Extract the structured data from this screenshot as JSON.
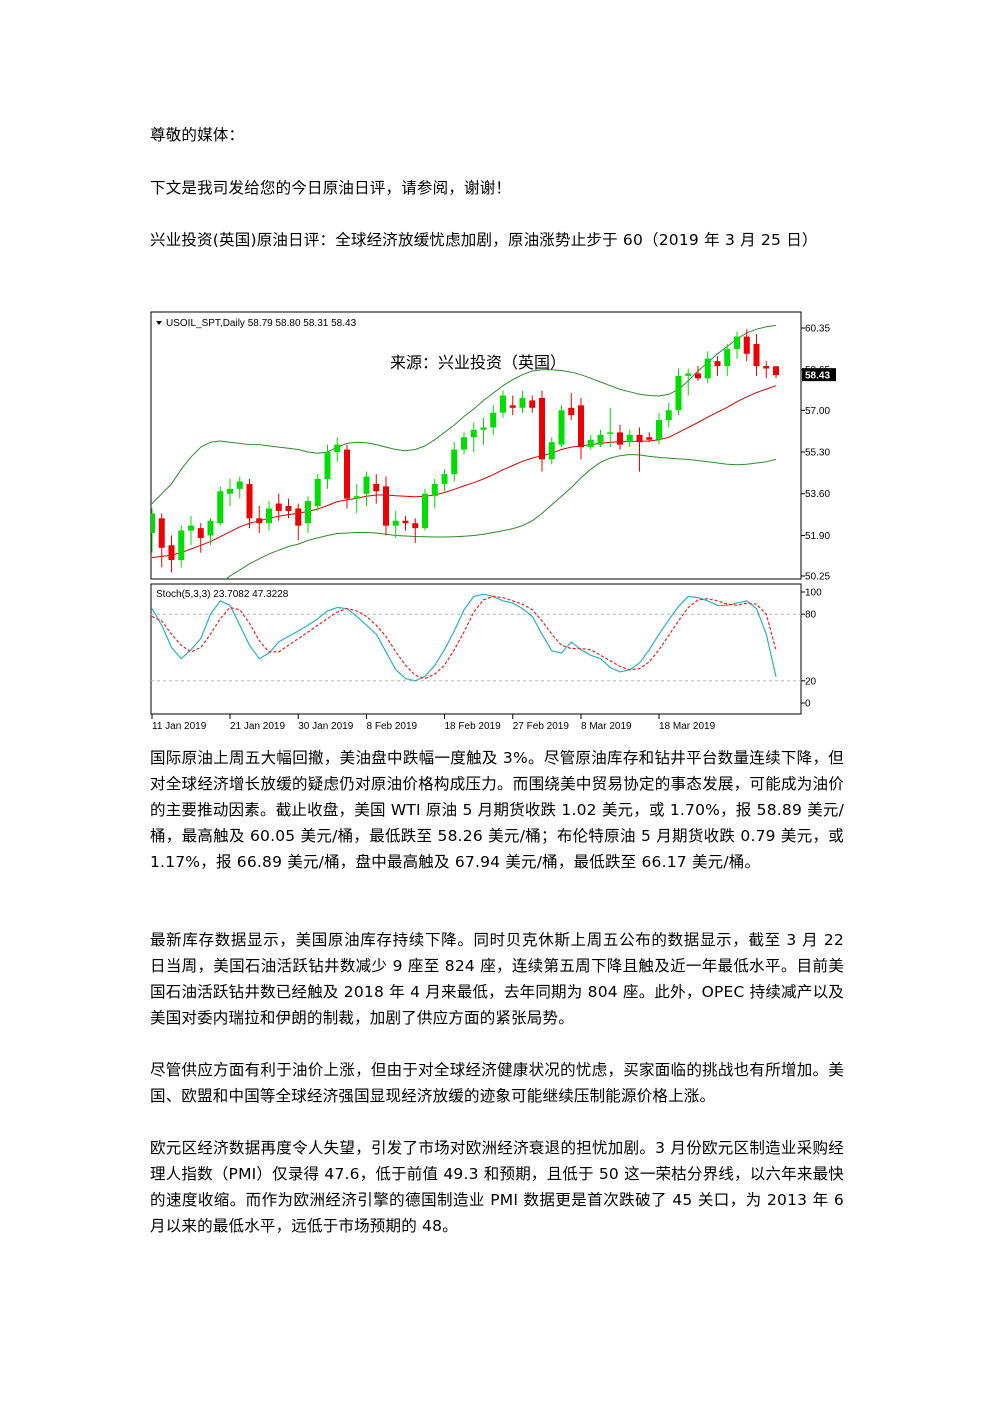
{
  "doc": {
    "greeting": "尊敬的媒体：",
    "intro": "下文是我司发给您的今日原油日评，请参阅，谢谢！",
    "headline": "兴业投资(英国)原油日评：全球经济放缓忧虑加剧，原油涨势止步于 60（2019 年 3 月 25 日）",
    "paragraphs": [
      "国际原油上周五大幅回撤，美油盘中跌幅一度触及 3%。尽管原油库存和钻井平台数量连续下降，但对全球经济增长放缓的疑虑仍对原油价格构成压力。而围绕美中贸易协定的事态发展，可能成为油价的主要推动因素。截止收盘，美国 WTI 原油 5 月期货收跌 1.02 美元，或 1.70%，报 58.89 美元/桶，最高触及 60.05 美元/桶，最低跌至 58.26 美元/桶；布伦特原油 5 月期货收跌 0.79 美元，或 1.17%，报 66.89 美元/桶，盘中最高触及 67.94 美元/桶，最低跌至 66.17 美元/桶。",
      "最新库存数据显示，美国原油库存持续下降。同时贝克休斯上周五公布的数据显示，截至 3 月 22 日当周，美国石油活跃钻井数减少 9 座至 824 座，连续第五周下降且触及近一年最低水平。目前美国石油活跃钻井数已经触及 2018 年 4 月来最低，去年同期为 804 座。此外，OPEC 持续减产以及美国对委内瑞拉和伊朗的制裁，加剧了供应方面的紧张局势。",
      "尽管供应方面有利于油价上涨，但由于对全球经济健康状况的忧虑，买家面临的挑战也有所增加。美国、欧盟和中国等全球经济强国显现经济放缓的迹象可能继续压制能源价格上涨。",
      "欧元区经济数据再度令人失望，引发了市场对欧洲经济衰退的担忧加剧。3 月份欧元区制造业采购经理人指数（PMI）仅录得 47.6，低于前值 49.3 和预期，且低于 50 这一荣枯分界线，以六年来最快的速度收缩。而作为欧洲经济引擎的德国制造业 PMI 数据更是首次跌破了 45 关口，为 2013 年 6 月以来的最低水平，远低于市场预期的 48。"
    ]
  },
  "chart_data": [
    {
      "type": "candlestick",
      "title": "USOIL_SPT,Daily 58.79 58.80 58.31 58.43",
      "source": "来源：兴业投资（英国）",
      "ylim": [
        50.25,
        60.35
      ],
      "y_ticks": [
        "60.35",
        "58.65",
        "57.00",
        "55.30",
        "53.60",
        "51.90",
        "50.25"
      ],
      "current_price_label": "58.43",
      "x_ticks": [
        "11 Jan 2019",
        "21 Jan 2019",
        "30 Jan 2019",
        "8 Feb 2019",
        "18 Feb 2019",
        "27 Feb 2019",
        "8 Mar 2019",
        "18 Mar 2019"
      ],
      "colors": {
        "up": "#00dd00",
        "down": "#ee0000",
        "ma": "#dd0000",
        "bands": "#2e8b2e"
      },
      "ohlc": [
        [
          52.0,
          53.0,
          51.2,
          52.8
        ],
        [
          52.6,
          52.8,
          50.6,
          51.4
        ],
        [
          51.5,
          51.9,
          50.4,
          50.9
        ],
        [
          50.9,
          52.3,
          50.6,
          52.1
        ],
        [
          52.1,
          52.7,
          51.5,
          52.3
        ],
        [
          52.2,
          52.4,
          51.2,
          51.8
        ],
        [
          51.9,
          52.6,
          51.5,
          52.5
        ],
        [
          52.4,
          53.9,
          52.3,
          53.7
        ],
        [
          53.6,
          54.2,
          53.1,
          53.8
        ],
        [
          53.8,
          54.3,
          53.4,
          54.1
        ],
        [
          54.0,
          54.2,
          52.2,
          52.6
        ],
        [
          52.6,
          53.1,
          52.0,
          52.4
        ],
        [
          52.4,
          53.3,
          52.1,
          53.0
        ],
        [
          53.2,
          53.6,
          52.5,
          52.9
        ],
        [
          53.1,
          53.4,
          52.6,
          52.9
        ],
        [
          53.0,
          53.2,
          51.7,
          52.3
        ],
        [
          52.4,
          53.5,
          52.0,
          53.3
        ],
        [
          53.1,
          54.4,
          52.9,
          54.2
        ],
        [
          54.2,
          55.6,
          53.8,
          55.3
        ],
        [
          55.3,
          55.9,
          54.9,
          55.6
        ],
        [
          55.4,
          55.6,
          53.0,
          53.4
        ],
        [
          53.4,
          54.0,
          52.8,
          53.5
        ],
        [
          53.6,
          54.5,
          53.1,
          54.3
        ],
        [
          54.0,
          54.4,
          53.2,
          53.7
        ],
        [
          53.9,
          54.3,
          51.9,
          52.3
        ],
        [
          52.3,
          52.9,
          51.8,
          52.5
        ],
        [
          52.5,
          52.7,
          52.1,
          52.4
        ],
        [
          52.4,
          52.6,
          51.6,
          52.2
        ],
        [
          52.2,
          53.8,
          52.1,
          53.6
        ],
        [
          53.5,
          54.2,
          53.0,
          54.0
        ],
        [
          54.0,
          54.6,
          53.7,
          54.4
        ],
        [
          54.4,
          55.7,
          54.1,
          55.4
        ],
        [
          55.4,
          56.1,
          55.2,
          55.9
        ],
        [
          55.9,
          56.5,
          55.3,
          56.2
        ],
        [
          56.2,
          56.7,
          55.6,
          56.3
        ],
        [
          56.3,
          57.2,
          56.0,
          56.9
        ],
        [
          56.9,
          57.8,
          56.7,
          57.6
        ],
        [
          57.2,
          57.6,
          56.8,
          57.1
        ],
        [
          57.1,
          57.8,
          56.9,
          57.5
        ],
        [
          57.4,
          57.6,
          56.9,
          57.1
        ],
        [
          57.5,
          57.8,
          54.5,
          55.0
        ],
        [
          55.0,
          55.9,
          54.8,
          55.7
        ],
        [
          55.6,
          57.2,
          55.5,
          57.0
        ],
        [
          57.1,
          57.7,
          56.6,
          56.8
        ],
        [
          57.2,
          57.5,
          55.0,
          55.5
        ],
        [
          55.5,
          56.0,
          55.4,
          55.8
        ],
        [
          55.6,
          56.2,
          55.5,
          56.0
        ],
        [
          56.1,
          57.1,
          55.5,
          56.1
        ],
        [
          56.1,
          56.4,
          55.4,
          55.6
        ],
        [
          55.7,
          56.2,
          55.5,
          56.0
        ],
        [
          56.0,
          56.3,
          54.5,
          55.7
        ],
        [
          55.9,
          56.1,
          55.7,
          55.8
        ],
        [
          55.8,
          56.9,
          55.6,
          56.6
        ],
        [
          56.6,
          57.3,
          56.3,
          57.0
        ],
        [
          57.0,
          58.7,
          56.8,
          58.4
        ],
        [
          58.4,
          58.7,
          57.6,
          58.5
        ],
        [
          58.5,
          58.8,
          58.2,
          58.3
        ],
        [
          58.3,
          59.4,
          58.1,
          59.1
        ],
        [
          59.0,
          59.2,
          58.4,
          58.8
        ],
        [
          58.8,
          59.7,
          58.4,
          59.5
        ],
        [
          59.5,
          60.2,
          59.1,
          60.0
        ],
        [
          60.0,
          60.3,
          59.0,
          59.3
        ],
        [
          59.7,
          60.1,
          58.4,
          58.8
        ],
        [
          58.8,
          59.0,
          58.3,
          58.7
        ],
        [
          58.79,
          58.8,
          58.31,
          58.43
        ]
      ],
      "moving_average": [
        51.0,
        51.05,
        51.1,
        51.2,
        51.35,
        51.5,
        51.65,
        51.85,
        52.05,
        52.25,
        52.4,
        52.5,
        52.6,
        52.68,
        52.75,
        52.8,
        52.88,
        52.98,
        53.12,
        53.28,
        53.35,
        53.42,
        53.5,
        53.55,
        53.55,
        53.52,
        53.5,
        53.48,
        53.5,
        53.55,
        53.65,
        53.78,
        53.92,
        54.05,
        54.2,
        54.38,
        54.58,
        54.75,
        54.92,
        55.05,
        55.15,
        55.25,
        55.4,
        55.5,
        55.55,
        55.6,
        55.65,
        55.7,
        55.72,
        55.73,
        55.74,
        55.75,
        55.8,
        55.9,
        56.1,
        56.3,
        56.5,
        56.72,
        56.92,
        57.12,
        57.35,
        57.55,
        57.72,
        57.86,
        58.0
      ],
      "upper_band": [
        53.2,
        53.6,
        54.0,
        54.6,
        55.1,
        55.5,
        55.7,
        55.75,
        55.7,
        55.65,
        55.6,
        55.6,
        55.55,
        55.5,
        55.45,
        55.4,
        55.3,
        55.25,
        55.3,
        55.5,
        55.65,
        55.7,
        55.68,
        55.6,
        55.5,
        55.4,
        55.35,
        55.4,
        55.55,
        55.8,
        56.1,
        56.4,
        56.75,
        57.05,
        57.4,
        57.7,
        58.0,
        58.25,
        58.45,
        58.6,
        58.65,
        58.65,
        58.62,
        58.55,
        58.45,
        58.3,
        58.15,
        58.0,
        57.85,
        57.75,
        57.65,
        57.6,
        57.58,
        57.65,
        57.85,
        58.2,
        58.6,
        58.95,
        59.3,
        59.6,
        59.9,
        60.15,
        60.3,
        60.4,
        60.45
      ],
      "lower_band": [
        48.8,
        48.9,
        49.0,
        49.1,
        49.25,
        49.45,
        49.65,
        49.95,
        50.25,
        50.5,
        50.75,
        50.95,
        51.15,
        51.3,
        51.45,
        51.55,
        51.7,
        51.8,
        51.9,
        51.98,
        52.0,
        52.02,
        52.02,
        52.0,
        51.95,
        51.9,
        51.88,
        51.86,
        51.85,
        51.84,
        51.84,
        51.85,
        51.87,
        51.9,
        51.95,
        52.02,
        52.1,
        52.18,
        52.3,
        52.5,
        52.8,
        53.15,
        53.5,
        53.85,
        54.25,
        54.6,
        54.88,
        55.05,
        55.15,
        55.2,
        55.18,
        55.12,
        55.08,
        55.05,
        55.02,
        55.0,
        54.95,
        54.9,
        54.85,
        54.8,
        54.78,
        54.8,
        54.85,
        54.9,
        55.0
      ]
    },
    {
      "type": "line",
      "title": "Stoch(5,3,3) 23.7082 47.3228",
      "ylim": [
        0,
        100
      ],
      "y_ticks": [
        "100",
        "80",
        "20",
        "0"
      ],
      "levels": [
        80,
        20
      ],
      "series": [
        {
          "name": "%K",
          "color": "#2ab0c8",
          "values": [
            85,
            70,
            50,
            40,
            48,
            58,
            80,
            92,
            88,
            70,
            52,
            40,
            45,
            55,
            60,
            65,
            70,
            76,
            83,
            86,
            85,
            78,
            70,
            62,
            46,
            30,
            22,
            20,
            24,
            34,
            48,
            65,
            84,
            96,
            98,
            96,
            92,
            90,
            85,
            78,
            62,
            47,
            45,
            55,
            48,
            43,
            40,
            32,
            28,
            30,
            36,
            48,
            62,
            75,
            87,
            96,
            95,
            92,
            88,
            88,
            90,
            92,
            85,
            62,
            23.7
          ]
        },
        {
          "name": "%D",
          "color": "#ee2222",
          "values": [
            78,
            74,
            62,
            52,
            46,
            50,
            62,
            76,
            86,
            84,
            72,
            56,
            46,
            46,
            52,
            58,
            64,
            70,
            76,
            82,
            85,
            83,
            78,
            70,
            60,
            46,
            34,
            25,
            22,
            26,
            34,
            48,
            64,
            82,
            93,
            96,
            95,
            92,
            89,
            84,
            74,
            62,
            52,
            49,
            49,
            48,
            43,
            38,
            33,
            30,
            31,
            37,
            48,
            61,
            74,
            86,
            93,
            94,
            92,
            89,
            88,
            90,
            89,
            80,
            47.3
          ]
        }
      ]
    }
  ]
}
